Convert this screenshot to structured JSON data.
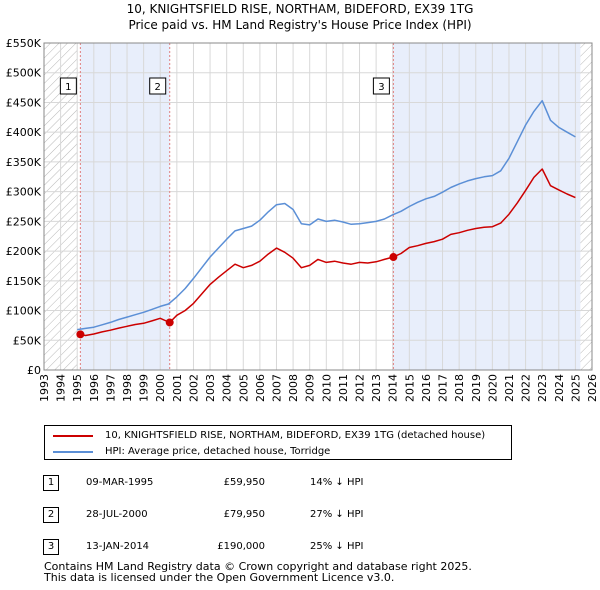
{
  "title_line1": "10, KNIGHTSFIELD RISE, NORTHAM, BIDEFORD, EX39 1TG",
  "title_line2": "Price paid vs. HM Land Registry's House Price Index (HPI)",
  "chart_data": {
    "type": "line",
    "title": "10, KNIGHTSFIELD RISE, NORTHAM, BIDEFORD, EX39 1TG",
    "subtitle": "Price paid vs. HM Land Registry's House Price Index (HPI)",
    "xlabel": "",
    "ylabel": "",
    "xlim": [
      1993,
      2026
    ],
    "ylim": [
      0,
      550000
    ],
    "ytick_values": [
      0,
      50000,
      100000,
      150000,
      200000,
      250000,
      300000,
      350000,
      400000,
      450000,
      500000,
      550000
    ],
    "ytick_labels": [
      "£0",
      "£50K",
      "£100K",
      "£150K",
      "£200K",
      "£250K",
      "£300K",
      "£350K",
      "£400K",
      "£450K",
      "£500K",
      "£550K"
    ],
    "xtick_labels": [
      "1993",
      "1994",
      "1995",
      "1996",
      "1997",
      "1998",
      "1999",
      "2000",
      "2001",
      "2002",
      "2003",
      "2004",
      "2005",
      "2006",
      "2007",
      "2008",
      "2009",
      "2010",
      "2011",
      "2012",
      "2013",
      "2014",
      "2015",
      "2016",
      "2017",
      "2018",
      "2019",
      "2020",
      "2021",
      "2022",
      "2023",
      "2024",
      "2025",
      "2026"
    ],
    "grid": true,
    "hatched_ranges": [
      [
        1993,
        1995.0
      ],
      [
        2025.3,
        2026
      ]
    ],
    "shaded_ranges": [
      [
        1995.19,
        2000.57
      ],
      [
        2014.04,
        2025.3
      ]
    ],
    "series": [
      {
        "name": "10, KNIGHTSFIELD RISE, NORTHAM, BIDEFORD, EX39 1TG (detached house)",
        "color": "#cc0000",
        "x": [
          1995.19,
          1995.5,
          1996.0,
          1996.5,
          1997.0,
          1997.5,
          1998.0,
          1998.5,
          1999.0,
          1999.5,
          2000.0,
          2000.57,
          2001.0,
          2001.5,
          2002.0,
          2002.5,
          2003.0,
          2003.5,
          2004.0,
          2004.5,
          2005.0,
          2005.5,
          2006.0,
          2006.5,
          2007.0,
          2007.5,
          2008.0,
          2008.5,
          2009.0,
          2009.5,
          2010.0,
          2010.5,
          2011.0,
          2011.5,
          2012.0,
          2012.5,
          2013.0,
          2013.5,
          2014.04,
          2014.5,
          2015.0,
          2015.5,
          2016.0,
          2016.5,
          2017.0,
          2017.5,
          2018.0,
          2018.5,
          2019.0,
          2019.5,
          2020.0,
          2020.5,
          2021.0,
          2021.5,
          2022.0,
          2022.5,
          2023.0,
          2023.5,
          2024.0,
          2024.5,
          2025.0
        ],
        "values": [
          59950,
          58000,
          60500,
          64000,
          67000,
          70500,
          73500,
          76500,
          78500,
          82500,
          87000,
          79950,
          92000,
          100000,
          112000,
          128000,
          144000,
          156000,
          167000,
          178000,
          172000,
          176000,
          183000,
          195000,
          205000,
          198000,
          188000,
          172000,
          176000,
          186000,
          181000,
          183000,
          180000,
          178000,
          181000,
          180000,
          182000,
          186000,
          190000,
          196000,
          206000,
          209000,
          213000,
          216000,
          220000,
          228000,
          231000,
          235000,
          238000,
          240000,
          241000,
          247000,
          262000,
          281000,
          302000,
          324000,
          338000,
          310000,
          303000,
          296000,
          290000
        ]
      },
      {
        "name": "HPI: Average price, detached house, Torridge",
        "color": "#5b8fd6",
        "x": [
          1995.0,
          1995.5,
          1996.0,
          1996.5,
          1997.0,
          1997.5,
          1998.0,
          1998.5,
          1999.0,
          1999.5,
          2000.0,
          2000.5,
          2001.0,
          2001.5,
          2002.0,
          2002.5,
          2003.0,
          2003.5,
          2004.0,
          2004.5,
          2005.0,
          2005.5,
          2006.0,
          2006.5,
          2007.0,
          2007.5,
          2008.0,
          2008.5,
          2009.0,
          2009.5,
          2010.0,
          2010.5,
          2011.0,
          2011.5,
          2012.0,
          2012.5,
          2013.0,
          2013.5,
          2014.0,
          2014.5,
          2015.0,
          2015.5,
          2016.0,
          2016.5,
          2017.0,
          2017.5,
          2018.0,
          2018.5,
          2019.0,
          2019.5,
          2020.0,
          2020.5,
          2021.0,
          2021.5,
          2022.0,
          2022.5,
          2023.0,
          2023.5,
          2024.0,
          2024.5,
          2025.0
        ],
        "values": [
          68000,
          70000,
          72000,
          76000,
          80000,
          85000,
          89000,
          93000,
          97000,
          102000,
          107000,
          111000,
          123000,
          137000,
          154000,
          172000,
          190000,
          205000,
          220000,
          234000,
          238000,
          242000,
          252000,
          266000,
          278000,
          280000,
          270000,
          246000,
          244000,
          254000,
          250000,
          252000,
          249000,
          245000,
          246000,
          248000,
          250000,
          254000,
          261000,
          267000,
          275000,
          282000,
          288000,
          292000,
          299000,
          307000,
          313000,
          318000,
          322000,
          325000,
          327000,
          335000,
          356000,
          384000,
          412000,
          435000,
          453000,
          420000,
          408000,
          400000,
          392000
        ]
      }
    ],
    "markers": [
      {
        "label": "1",
        "x": 1995.19,
        "y": 59950
      },
      {
        "label": "2",
        "x": 2000.57,
        "y": 79950
      },
      {
        "label": "3",
        "x": 2014.04,
        "y": 190000
      }
    ]
  },
  "legend": {
    "items": [
      {
        "label": "10, KNIGHTSFIELD RISE, NORTHAM, BIDEFORD, EX39 1TG (detached house)",
        "color": "#cc0000"
      },
      {
        "label": "HPI: Average price, detached house, Torridge",
        "color": "#5b8fd6"
      }
    ]
  },
  "sales": [
    {
      "num": "1",
      "date": "09-MAR-1995",
      "price": "£59,950",
      "hpi": "14% ↓ HPI"
    },
    {
      "num": "2",
      "date": "28-JUL-2000",
      "price": "£79,950",
      "hpi": "27% ↓ HPI"
    },
    {
      "num": "3",
      "date": "13-JAN-2014",
      "price": "£190,000",
      "hpi": "25% ↓ HPI"
    }
  ],
  "footer_line1": "Contains HM Land Registry data © Crown copyright and database right 2025.",
  "footer_line2": "This data is licensed under the Open Government Licence v3.0."
}
